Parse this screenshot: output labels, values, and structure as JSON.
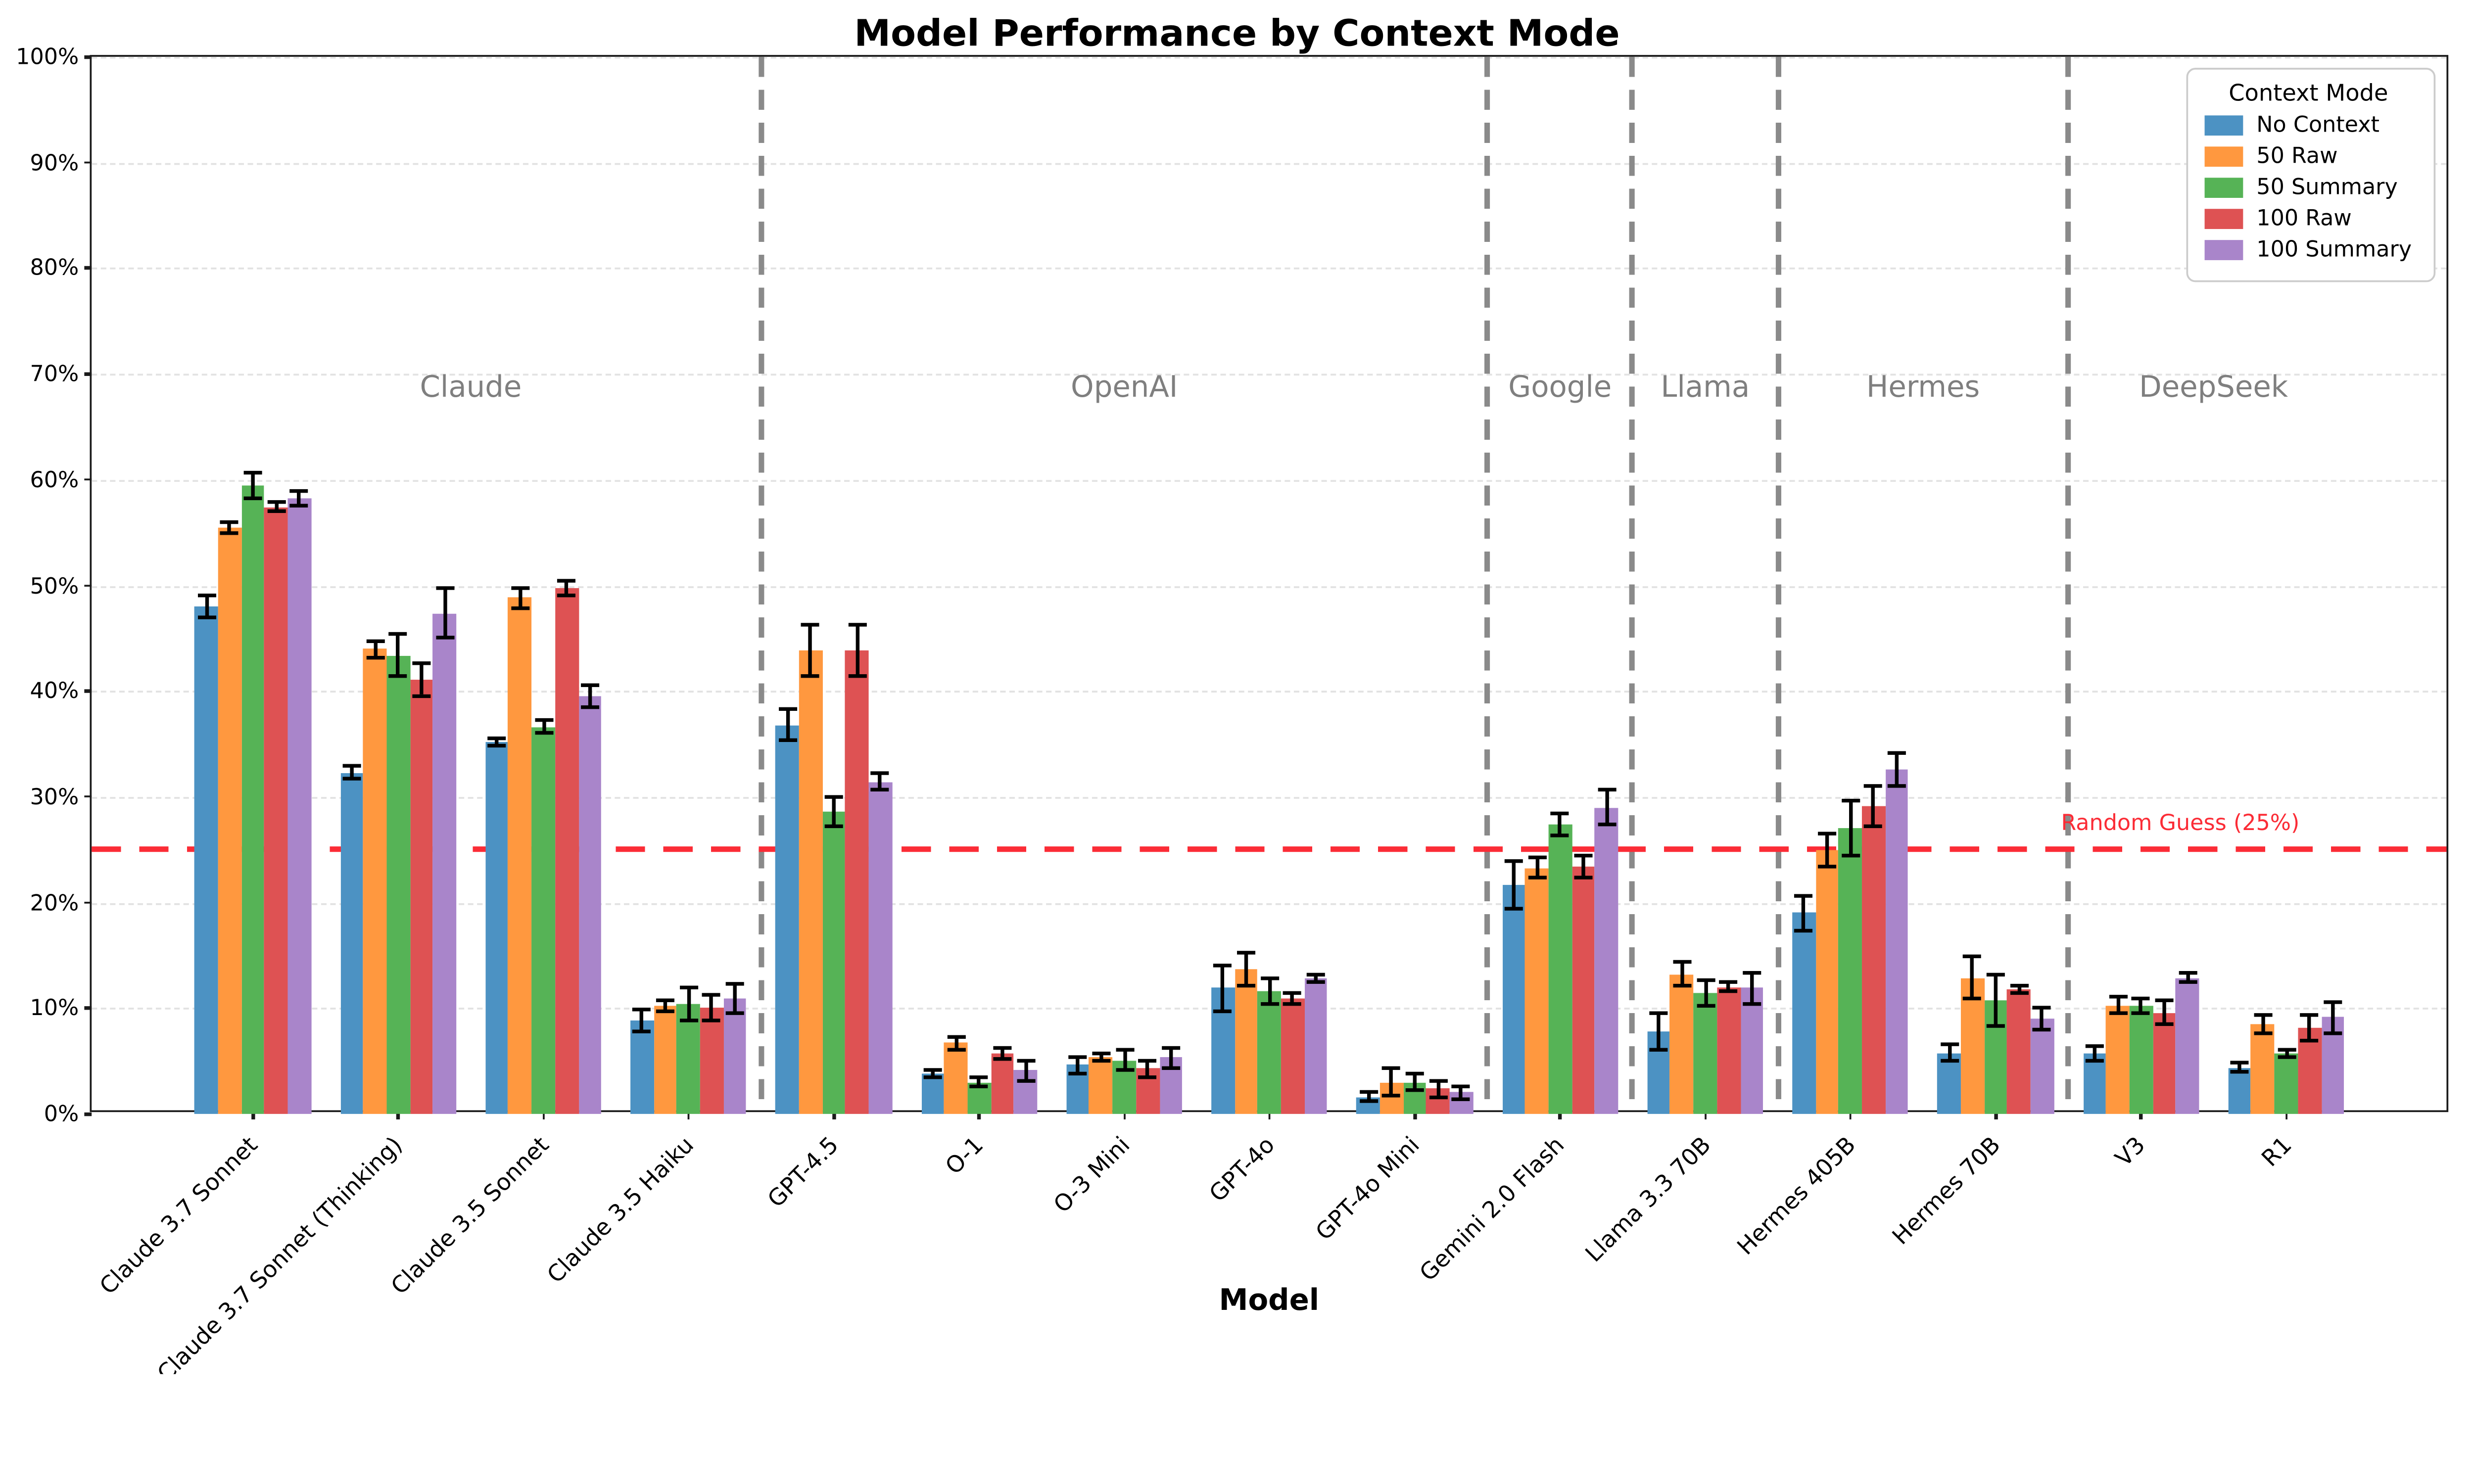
{
  "chart_data": {
    "type": "bar",
    "title": "Model Performance by Context Mode",
    "xlabel": "Model",
    "ylim": [
      0,
      100
    ],
    "y_ticks": [
      "0%",
      "10%",
      "20%",
      "30%",
      "40%",
      "50%",
      "60%",
      "70%",
      "80%",
      "90%",
      "100%"
    ],
    "grid": "horizontal-dashed",
    "legend_position": "top-right",
    "legend_title": "Context Mode",
    "categories": [
      "Claude 3.7 Sonnet",
      "Claude 3.7 Sonnet (Thinking)",
      "Claude 3.5 Sonnet",
      "Claude 3.5 Haiku",
      "GPT-4.5",
      "O-1",
      "O-3 Mini",
      "GPT-4o",
      "GPT-4o Mini",
      "Gemini 2.0 Flash",
      "Llama 3.3 70B",
      "Hermes 405B",
      "Hermes 70B",
      "V3",
      "R1"
    ],
    "series": [
      {
        "name": "No Context",
        "color": "#4C92C3",
        "values": [
          48.0,
          32.3,
          35.2,
          8.8,
          36.8,
          3.8,
          4.6,
          11.9,
          1.6,
          21.7,
          7.8,
          19.0,
          5.8,
          5.7,
          4.4
        ],
        "errors": [
          1.1,
          0.6,
          0.4,
          1.0,
          1.5,
          0.4,
          0.8,
          2.2,
          0.4,
          2.3,
          1.7,
          1.7,
          0.7,
          0.7,
          0.5
        ]
      },
      {
        "name": "50 Raw",
        "color": "#FF983F",
        "values": [
          55.5,
          44.0,
          48.8,
          10.2,
          43.8,
          6.7,
          5.4,
          13.7,
          3.0,
          23.3,
          13.2,
          25.0,
          12.9,
          10.3,
          8.5
        ],
        "errors": [
          0.5,
          0.8,
          1.0,
          0.5,
          2.4,
          0.6,
          0.4,
          1.5,
          1.3,
          1.0,
          1.1,
          1.6,
          2.0,
          0.8,
          0.8
        ]
      },
      {
        "name": "50 Summary",
        "color": "#56B356",
        "values": [
          59.5,
          43.4,
          36.6,
          10.4,
          28.6,
          3.0,
          5.1,
          11.6,
          3.0,
          27.4,
          11.5,
          27.0,
          10.7,
          10.3,
          5.7
        ],
        "errors": [
          1.2,
          2.0,
          0.6,
          1.5,
          1.4,
          0.4,
          1.0,
          1.2,
          0.8,
          1.1,
          1.2,
          2.6,
          2.4,
          0.7,
          0.4
        ]
      },
      {
        "name": "100 Raw",
        "color": "#DE5253",
        "values": [
          57.4,
          41.1,
          49.8,
          10.0,
          43.9,
          5.7,
          4.3,
          10.9,
          2.4,
          23.4,
          12.0,
          29.1,
          11.8,
          9.6,
          8.2
        ],
        "errors": [
          0.4,
          1.5,
          0.7,
          1.2,
          2.4,
          0.5,
          0.8,
          0.5,
          0.8,
          1.0,
          0.4,
          1.9,
          0.3,
          1.1,
          1.2
        ]
      },
      {
        "name": "100 Summary",
        "color": "#A985CA",
        "values": [
          58.2,
          47.4,
          39.5,
          10.9,
          31.4,
          4.1,
          5.3,
          12.8,
          2.0,
          29.0,
          11.9,
          32.6,
          9.0,
          12.9,
          9.1
        ],
        "errors": [
          0.7,
          2.3,
          1.1,
          1.4,
          0.8,
          0.9,
          0.9,
          0.4,
          0.6,
          1.6,
          1.5,
          1.6,
          1.0,
          0.5,
          1.4
        ]
      }
    ],
    "group_separators_at": [
      3.5,
      8.5,
      9.5,
      10.5,
      12.5
    ],
    "group_labels": [
      {
        "text": "Claude",
        "slot": 1.5
      },
      {
        "text": "OpenAI",
        "slot": 6
      },
      {
        "text": "Google",
        "slot": 9
      },
      {
        "text": "Llama",
        "slot": 10
      },
      {
        "text": "Hermes",
        "slot": 11.5
      },
      {
        "text": "DeepSeek",
        "slot": 13.5
      }
    ],
    "group_label_y": 68.8,
    "reference_line": {
      "value": 25,
      "label": "Random Guess (25%)",
      "color": "#fb2c36"
    }
  }
}
